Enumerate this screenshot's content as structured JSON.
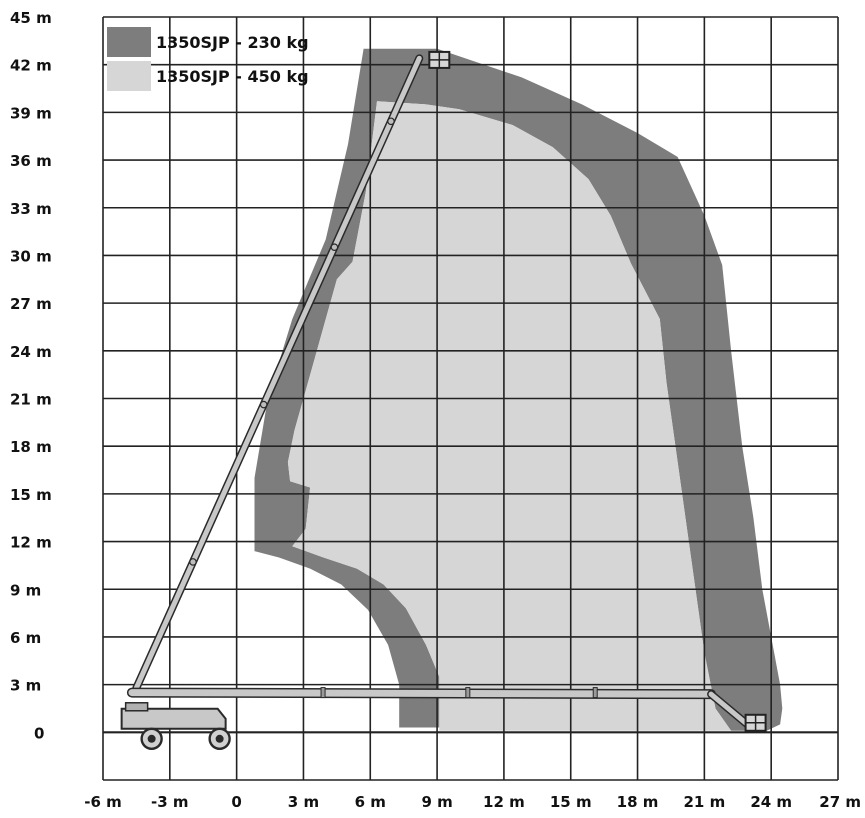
{
  "chart_data": {
    "type": "area",
    "title": "",
    "xlabel": "",
    "ylabel": "",
    "xlim": [
      -6,
      27
    ],
    "ylim": [
      -3,
      45
    ],
    "grid": true,
    "legend_position": "top-left",
    "x_ticks": [
      {
        "value": -6,
        "label": "-6 m"
      },
      {
        "value": -3,
        "label": "-3 m"
      },
      {
        "value": 0,
        "label": "0"
      },
      {
        "value": 3,
        "label": "3 m"
      },
      {
        "value": 6,
        "label": "6 m"
      },
      {
        "value": 9,
        "label": "9 m"
      },
      {
        "value": 12,
        "label": "12 m"
      },
      {
        "value": 15,
        "label": "15 m"
      },
      {
        "value": 18,
        "label": "18 m"
      },
      {
        "value": 21,
        "label": "21 m"
      },
      {
        "value": 24,
        "label": "24 m"
      },
      {
        "value": 27,
        "label": "27 m"
      }
    ],
    "y_ticks": [
      {
        "value": 0,
        "label": "0"
      },
      {
        "value": 3,
        "label": "3 m"
      },
      {
        "value": 6,
        "label": "6 m"
      },
      {
        "value": 9,
        "label": "9 m"
      },
      {
        "value": 12,
        "label": "12 m"
      },
      {
        "value": 15,
        "label": "15 m"
      },
      {
        "value": 18,
        "label": "18 m"
      },
      {
        "value": 21,
        "label": "21 m"
      },
      {
        "value": 24,
        "label": "24 m"
      },
      {
        "value": 27,
        "label": "27 m"
      },
      {
        "value": 30,
        "label": "30 m"
      },
      {
        "value": 33,
        "label": "33 m"
      },
      {
        "value": 36,
        "label": "36 m"
      },
      {
        "value": 39,
        "label": "39 m"
      },
      {
        "value": 42,
        "label": "42 m"
      },
      {
        "value": 45,
        "label": "45 m"
      }
    ],
    "series": [
      {
        "name": "1350SJP - 230 kg",
        "color": "#7d7d7d",
        "points": [
          [
            5.7,
            43
          ],
          [
            9,
            43
          ],
          [
            12.8,
            41.2
          ],
          [
            15.5,
            39.5
          ],
          [
            18,
            37.7
          ],
          [
            19.8,
            36.2
          ],
          [
            21,
            32.5
          ],
          [
            21.8,
            29.4
          ],
          [
            22.2,
            24
          ],
          [
            22.7,
            18
          ],
          [
            23.2,
            13.5
          ],
          [
            23.6,
            9
          ],
          [
            24,
            6
          ],
          [
            24.4,
            3
          ],
          [
            24.5,
            1.5
          ],
          [
            24.4,
            0.5
          ],
          [
            23.8,
            0.1
          ],
          [
            22.2,
            0.1
          ],
          [
            21.5,
            1.5
          ],
          [
            21,
            5
          ],
          [
            20.3,
            12
          ],
          [
            19.6,
            19
          ],
          [
            19.3,
            22
          ],
          [
            19,
            26
          ],
          [
            17.7,
            29.5
          ],
          [
            16.8,
            32.5
          ],
          [
            15.8,
            34.8
          ],
          [
            14.2,
            36.8
          ],
          [
            12.4,
            38.2
          ],
          [
            10,
            39.2
          ],
          [
            8.5,
            39.5
          ],
          [
            6.3,
            39.7
          ],
          [
            5.8,
            34
          ],
          [
            5.2,
            29.6
          ],
          [
            4.5,
            28.5
          ],
          [
            3.8,
            25
          ],
          [
            3.4,
            23
          ],
          [
            2.6,
            19
          ],
          [
            2.3,
            17
          ],
          [
            2.4,
            15.8
          ],
          [
            3.3,
            15.4
          ],
          [
            3.1,
            12.8
          ],
          [
            2.5,
            11.7
          ],
          [
            3.9,
            11
          ],
          [
            5.4,
            10.3
          ],
          [
            6.6,
            9.3
          ],
          [
            7.6,
            7.8
          ],
          [
            8.5,
            5.5
          ],
          [
            9.1,
            3.5
          ],
          [
            9.1,
            0.3
          ],
          [
            7.3,
            0.3
          ],
          [
            7.3,
            3
          ],
          [
            6.8,
            5.5
          ],
          [
            5.9,
            7.7
          ],
          [
            4.7,
            9.3
          ],
          [
            3.3,
            10.3
          ],
          [
            1.9,
            11
          ],
          [
            0.8,
            11.4
          ],
          [
            0.8,
            16
          ],
          [
            1.4,
            21
          ],
          [
            2.5,
            26
          ],
          [
            4,
            31
          ],
          [
            5,
            37
          ]
        ]
      },
      {
        "name": "1350SJP - 450 kg",
        "color": "#d6d6d6",
        "points": [
          [
            6.3,
            39.7
          ],
          [
            8.5,
            39.5
          ],
          [
            10,
            39.2
          ],
          [
            12.4,
            38.2
          ],
          [
            14.2,
            36.8
          ],
          [
            15.8,
            34.8
          ],
          [
            16.8,
            32.5
          ],
          [
            17.7,
            29.5
          ],
          [
            19,
            26
          ],
          [
            19.3,
            22
          ],
          [
            19.6,
            19
          ],
          [
            20.3,
            12
          ],
          [
            21,
            5
          ],
          [
            21.5,
            1.5
          ],
          [
            22.2,
            0.1
          ],
          [
            9.1,
            0.1
          ],
          [
            9.1,
            3.5
          ],
          [
            8.5,
            5.5
          ],
          [
            7.6,
            7.8
          ],
          [
            6.6,
            9.3
          ],
          [
            5.4,
            10.3
          ],
          [
            3.9,
            11
          ],
          [
            2.5,
            11.7
          ],
          [
            3.1,
            12.8
          ],
          [
            3.3,
            15.4
          ],
          [
            2.4,
            15.8
          ],
          [
            2.3,
            17
          ],
          [
            2.6,
            19
          ],
          [
            3.4,
            23
          ],
          [
            3.8,
            25
          ],
          [
            4.5,
            28.5
          ],
          [
            5.2,
            29.6
          ],
          [
            5.8,
            34
          ]
        ]
      }
    ],
    "boom": {
      "upper_boom": [
        [
          -4.5,
          2.8
        ],
        [
          8.2,
          42.4
        ]
      ],
      "lower_boom": [
        [
          -4.7,
          2.5
        ],
        [
          21.3,
          2.4
        ]
      ],
      "jib_extension": [
        [
          21.3,
          2.4
        ],
        [
          23.1,
          0.3
        ]
      ],
      "chassis_center": [
        -2.2,
        0.6
      ],
      "platform_up": [
        9.1,
        42.3
      ],
      "platform_down": [
        23.3,
        0.6
      ]
    }
  }
}
